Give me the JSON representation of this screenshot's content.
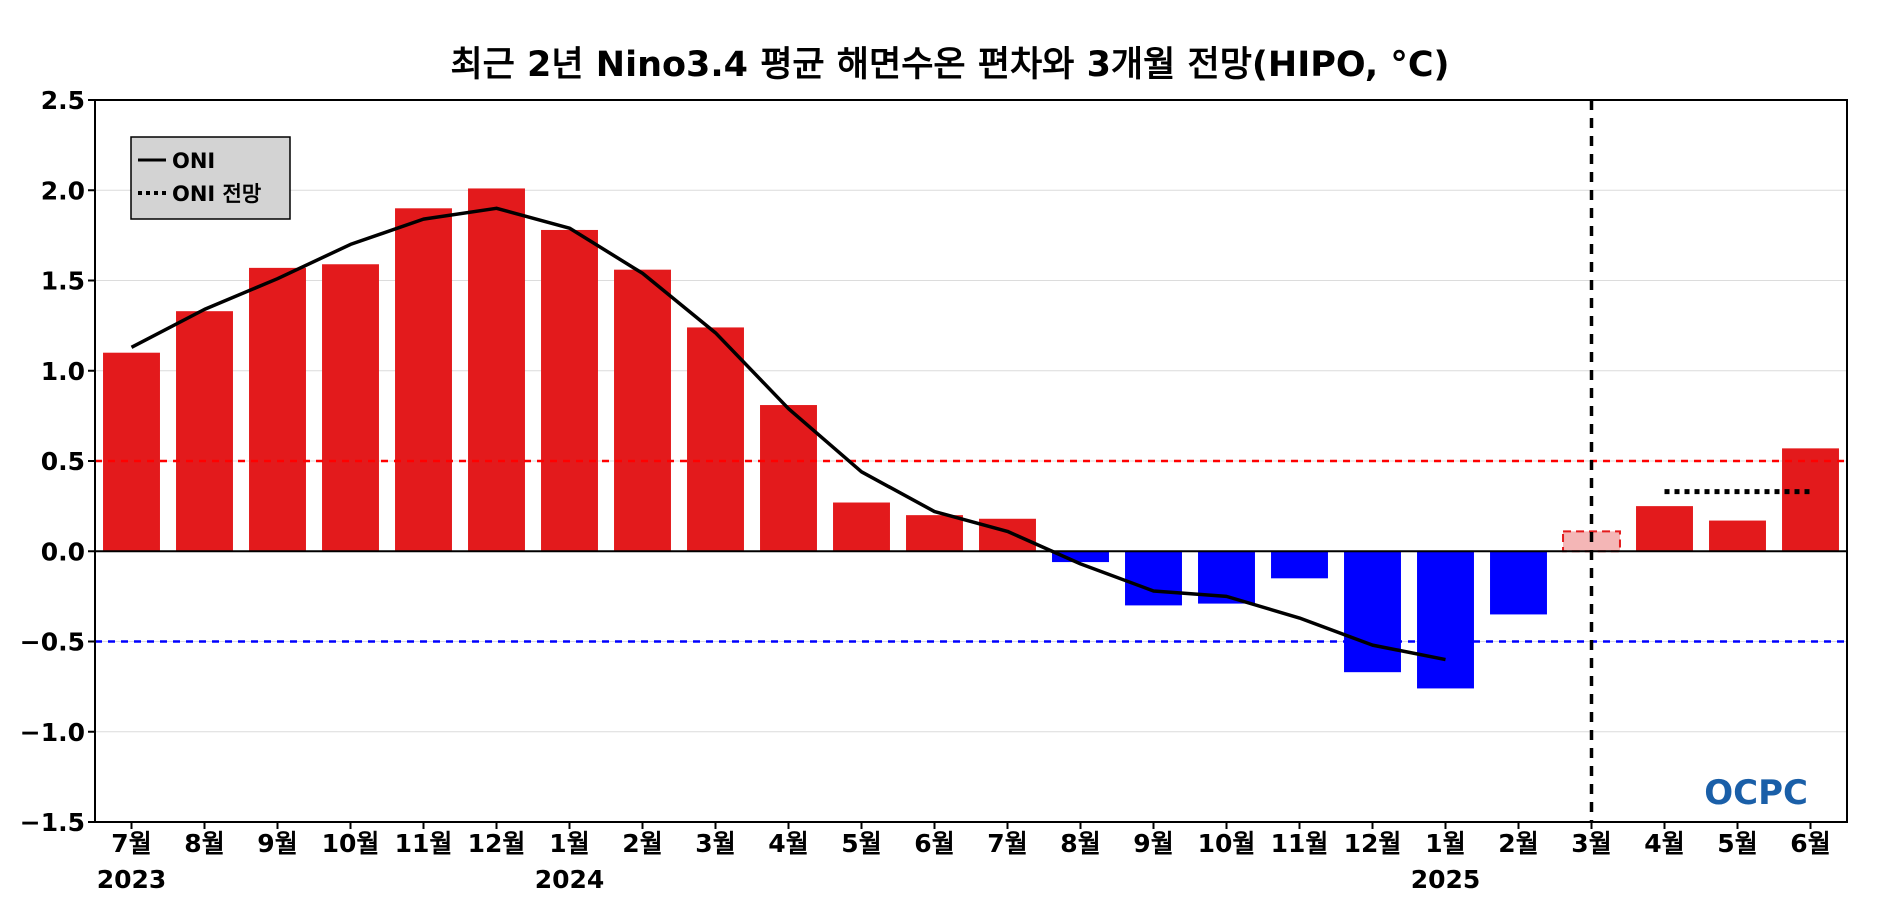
{
  "chart_data": {
    "type": "bar",
    "title": "최근 2년 Nino3.4 평균 해면수온 편차와 3개월 전망(HIPO, °C)",
    "xlabel": "",
    "ylabel": "",
    "ylim": [
      -1.5,
      2.5
    ],
    "yticks": [
      "2.5",
      "2.0",
      "1.5",
      "1.0",
      "0.5",
      "0.0",
      "−0.5",
      "−1.0",
      "−1.5"
    ],
    "ytick_values": [
      2.5,
      2.0,
      1.5,
      1.0,
      0.5,
      0.0,
      -0.5,
      -1.0,
      -1.5
    ],
    "categories": [
      "7월",
      "8월",
      "9월",
      "10월",
      "11월",
      "12월",
      "1월",
      "2월",
      "3월",
      "4월",
      "5월",
      "6월",
      "7월",
      "8월",
      "9월",
      "10월",
      "11월",
      "12월",
      "1월",
      "2월",
      "3월",
      "4월",
      "5월",
      "6월"
    ],
    "year_labels": [
      {
        "index": 0,
        "text": "2023"
      },
      {
        "index": 6,
        "text": "2024"
      },
      {
        "index": 18,
        "text": "2025"
      }
    ],
    "series": [
      {
        "name": "",
        "kind": "bar",
        "values": [
          1.1,
          1.33,
          1.57,
          1.59,
          1.9,
          2.01,
          1.78,
          1.56,
          1.24,
          0.81,
          0.27,
          0.2,
          0.18,
          -0.06,
          -0.3,
          -0.29,
          -0.15,
          -0.67,
          -0.76,
          -0.35,
          0.11,
          0.25,
          0.17,
          0.57
        ]
      },
      {
        "name": "ONI",
        "kind": "line",
        "values": [
          1.13,
          1.34,
          1.51,
          1.7,
          1.84,
          1.9,
          1.79,
          1.54,
          1.21,
          0.79,
          0.44,
          0.22,
          0.11,
          -0.07,
          -0.22,
          -0.25,
          -0.37,
          -0.52,
          -0.6,
          null,
          null,
          null,
          null,
          null
        ]
      },
      {
        "name": "ONI 전망",
        "kind": "dotted-line",
        "x_start_index": 21,
        "x_end_index": 23,
        "value": 0.33
      }
    ],
    "forecast_start_index": 20,
    "reference_lines": [
      {
        "value": 0.5,
        "color": "#ff0000",
        "style": "dashed"
      },
      {
        "value": -0.5,
        "color": "#0000ff",
        "style": "dashed"
      }
    ],
    "grid": true,
    "legend_position": "top-left",
    "colors": {
      "positive_bar": "#e31a1c",
      "negative_bar": "#0000ff",
      "forecast_pending_bar": "#f4b6b6",
      "forecast_pending_border": "#e31a1c",
      "oni_line": "#000000",
      "grid": "#dcdcdc",
      "legend_bg": "#d3d3d3"
    }
  },
  "logo": {
    "text": "OCPC",
    "color_top": "#4fb6e8",
    "color_bottom": "#1a5fa8"
  }
}
